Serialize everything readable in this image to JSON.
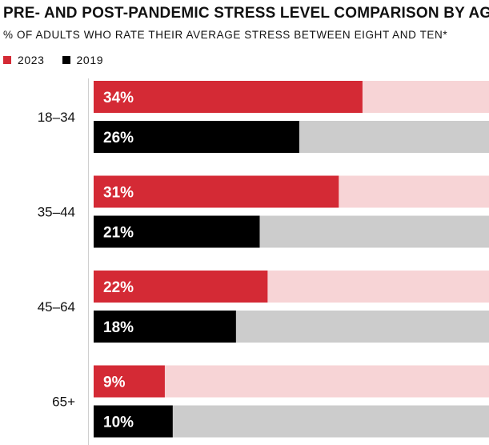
{
  "chart_data": {
    "type": "bar",
    "orientation": "horizontal",
    "title": "PRE- AND POST-PANDEMIC STRESS LEVEL COMPARISON BY AGE",
    "subtitle": "% OF ADULTS WHO RATE THEIR AVERAGE STRESS BETWEEN EIGHT AND TEN*",
    "categories": [
      "18–34",
      "35–44",
      "45–64",
      "65+"
    ],
    "series": [
      {
        "name": "2023",
        "values": [
          34,
          31,
          22,
          9
        ],
        "labels": [
          "34%",
          "31%",
          "22%",
          "9%"
        ],
        "color": "#d42a35",
        "track_color": "#f7d4d6"
      },
      {
        "name": "2019",
        "values": [
          26,
          21,
          18,
          10
        ],
        "labels": [
          "26%",
          "21%",
          "18%",
          "10%"
        ],
        "color": "#000000",
        "track_color": "#cccccc"
      }
    ],
    "xlim": [
      0,
      50
    ],
    "grid": false,
    "legend_position": "top-left"
  }
}
